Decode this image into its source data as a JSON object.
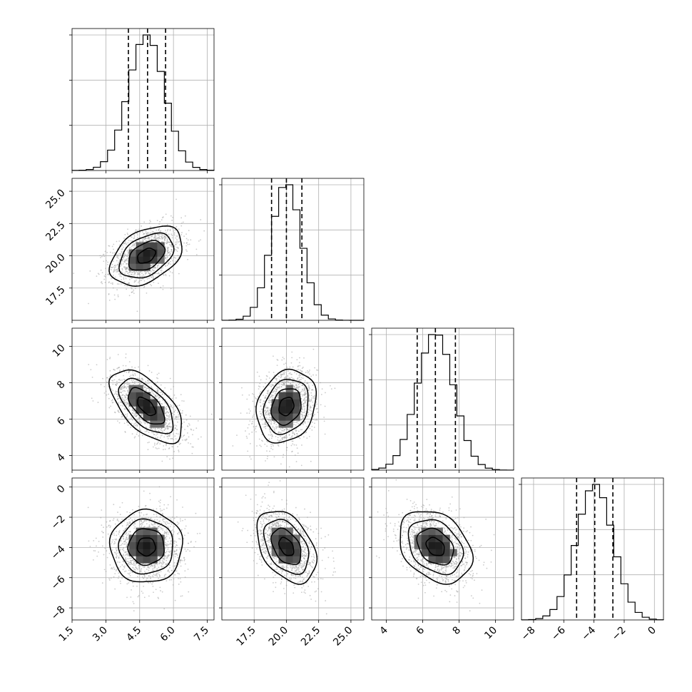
{
  "chart_data": {
    "type": "corner",
    "grid": true,
    "parameters": [
      {
        "mean": 4.8,
        "sd": 0.8,
        "range": [
          1.5,
          7.8
        ],
        "ticks": [
          1.5,
          3.0,
          4.5,
          6.0,
          7.5
        ],
        "tick_labels": [
          "1.5",
          "3.0",
          "4.5",
          "6.0",
          "7.5"
        ],
        "quantiles": [
          4.0,
          4.85,
          5.65
        ]
      },
      {
        "mean": 20.0,
        "sd": 1.15,
        "range": [
          15.0,
          26.0
        ],
        "ticks": [
          17.5,
          20.0,
          22.5,
          25.0
        ],
        "tick_labels": [
          "17.5",
          "20.0",
          "22.5",
          "25.0"
        ],
        "quantiles": [
          18.85,
          20.0,
          21.2
        ]
      },
      {
        "mean": 6.7,
        "sd": 1.0,
        "range": [
          3.2,
          11.0
        ],
        "ticks": [
          4,
          6,
          8,
          10
        ],
        "tick_labels": [
          "4",
          "6",
          "8",
          "10"
        ],
        "quantiles": [
          5.7,
          6.7,
          7.8
        ]
      },
      {
        "mean": -3.95,
        "sd": 1.2,
        "range": [
          -8.8,
          0.6
        ],
        "ticks": [
          -8,
          -6,
          -4,
          -2,
          0
        ],
        "tick_labels": [
          "−8",
          "−6",
          "−4",
          "−2",
          "0"
        ],
        "quantiles": [
          -5.15,
          -3.95,
          -2.75
        ]
      }
    ],
    "correlations": [
      [
        1.0,
        0.4,
        -0.6,
        0.0
      ],
      [
        0.4,
        1.0,
        0.2,
        -0.4
      ],
      [
        -0.6,
        0.2,
        1.0,
        -0.3
      ],
      [
        0.0,
        -0.4,
        -0.3,
        1.0
      ]
    ],
    "histogram_bins": 20,
    "contour_levels": [
      0.5,
      1.0,
      1.5,
      2.0
    ]
  }
}
